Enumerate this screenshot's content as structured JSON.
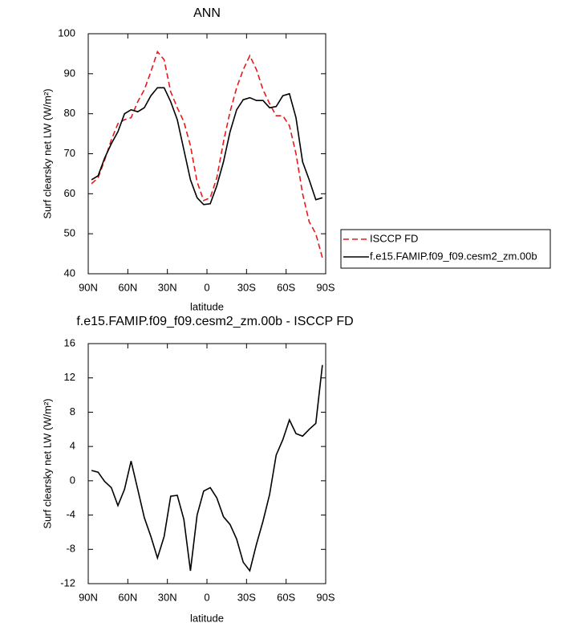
{
  "chart_data": [
    {
      "type": "line",
      "title": "ANN",
      "x_label": "latitude",
      "y_label": "Surf clearsky net LW (W/m²)",
      "x": [
        87.5,
        82.5,
        77.5,
        72.5,
        67.5,
        62.5,
        57.5,
        52.5,
        47.5,
        42.5,
        37.5,
        32.5,
        27.5,
        22.5,
        17.5,
        12.5,
        7.5,
        2.5,
        -2.5,
        -7.5,
        -12.5,
        -17.5,
        -22.5,
        -27.5,
        -32.5,
        -37.5,
        -42.5,
        -47.5,
        -52.5,
        -57.5,
        -62.5,
        -67.5,
        -72.5,
        -77.5,
        -82.5,
        -87.5
      ],
      "series": [
        {
          "name": "ISCCP FD",
          "color": "#e41a1c",
          "dash": "dashed",
          "values": [
            62.5,
            64,
            68.5,
            73.5,
            77.5,
            78.5,
            79,
            83,
            86,
            90.5,
            95.5,
            93.5,
            85.5,
            81.5,
            78,
            72,
            63,
            58.3,
            59,
            64,
            73,
            80.5,
            86.5,
            91,
            94.5,
            91,
            86,
            82.5,
            79.5,
            79.5,
            77,
            70,
            60,
            53,
            50,
            44
          ]
        },
        {
          "name": "f.e15.FAMIP.f09_f09.cesm2_zm.00b",
          "color": "#000000",
          "dash": "solid",
          "values": [
            63.5,
            64.5,
            69,
            72.5,
            75.5,
            80,
            81,
            80.5,
            81.5,
            84.5,
            86.5,
            86.5,
            83,
            78.5,
            71,
            63.5,
            59,
            57.3,
            57.5,
            62,
            68,
            75.5,
            81,
            83.5,
            84,
            83.3,
            83.3,
            81.5,
            81.8,
            84.5,
            85,
            79,
            68,
            63.5,
            58.5,
            59
          ]
        }
      ],
      "xlim": [
        90,
        -90
      ],
      "xticks": [
        {
          "value": 90,
          "label": "90N"
        },
        {
          "value": 60,
          "label": "60N"
        },
        {
          "value": 30,
          "label": "30N"
        },
        0,
        {
          "value": -30,
          "label": "30S"
        },
        {
          "value": -60,
          "label": "60S"
        },
        {
          "value": -90,
          "label": "90S"
        }
      ],
      "ylim": [
        40,
        100
      ],
      "yticks": [
        40,
        50,
        60,
        70,
        80,
        90,
        100
      ],
      "legend": "right"
    },
    {
      "type": "line",
      "title": "f.e15.FAMIP.f09_f09.cesm2_zm.00b - ISCCP FD",
      "x_label": "latitude",
      "y_label": "Surf clearsky net LW (W/m²)",
      "x": [
        87.5,
        82.5,
        77.5,
        72.5,
        67.5,
        62.5,
        57.5,
        52.5,
        47.5,
        42.5,
        37.5,
        32.5,
        27.5,
        22.5,
        17.5,
        12.5,
        7.5,
        2.5,
        -2.5,
        -7.5,
        -12.5,
        -17.5,
        -22.5,
        -27.5,
        -32.5,
        -37.5,
        -42.5,
        -47.5,
        -52.5,
        -57.5,
        -62.5,
        -67.5,
        -72.5,
        -77.5,
        -82.5,
        -87.5
      ],
      "values": [
        1.2,
        1,
        -0.1,
        -0.8,
        -2.9,
        -1,
        2.3,
        -1,
        -4.3,
        -6.5,
        -9,
        -6.5,
        -1.8,
        -1.7,
        -4.5,
        -10.5,
        -4,
        -1.2,
        -0.8,
        -2,
        -4.2,
        -5.1,
        -6.8,
        -9.5,
        -10.5,
        -7.4,
        -4.7,
        -1.6,
        3,
        4.8,
        7.1,
        5.5,
        5.2,
        6,
        6.7,
        13.5
      ],
      "color": "#000000",
      "xlim": [
        90,
        -90
      ],
      "xticks": [
        {
          "value": 90,
          "label": "90N"
        },
        {
          "value": 60,
          "label": "60N"
        },
        {
          "value": 30,
          "label": "30N"
        },
        0,
        {
          "value": -30,
          "label": "30S"
        },
        {
          "value": -60,
          "label": "60S"
        },
        {
          "value": -90,
          "label": "90S"
        }
      ],
      "ylim": [
        -12,
        16
      ],
      "yticks": [
        -12,
        -8,
        -4,
        0,
        4,
        8,
        12,
        16
      ]
    }
  ]
}
